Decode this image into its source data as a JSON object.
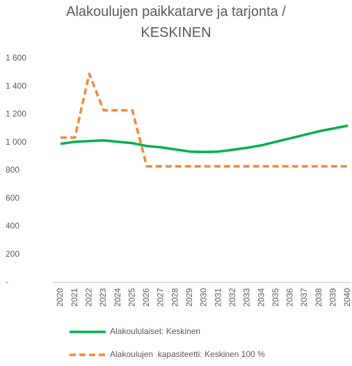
{
  "chart_data": {
    "type": "line",
    "title": "Alakoulujen paikkatarve ja tarjonta / KESKINEN",
    "categories": [
      "2020",
      "2021",
      "2022",
      "2023",
      "2024",
      "2025",
      "2026",
      "2027",
      "2028",
      "2029",
      "2030",
      "2031",
      "2032",
      "2033",
      "2034",
      "2035",
      "2036",
      "2037",
      "2038",
      "2039",
      "2040"
    ],
    "series": [
      {
        "name": "Alakoululaiset: Keskinen",
        "color": "#00b050",
        "dash": false,
        "values": [
          990,
          1005,
          1010,
          1015,
          1005,
          995,
          975,
          965,
          950,
          935,
          932,
          935,
          948,
          962,
          980,
          1005,
          1030,
          1055,
          1080,
          1100,
          1120
        ]
      },
      {
        "name": "Alakoulujen  kapasiteetti: Keskinen 100 %",
        "color": "#f4873b",
        "dash": true,
        "values": [
          1035,
          1035,
          1490,
          1230,
          1230,
          1230,
          830,
          830,
          830,
          830,
          830,
          830,
          830,
          830,
          830,
          830,
          830,
          830,
          830,
          830,
          830
        ]
      }
    ],
    "ylim": [
      0,
      1600
    ],
    "yticks": [
      {
        "value": 0,
        "label": "-"
      },
      200,
      400,
      600,
      800,
      {
        "value": 1000,
        "label": "1 000"
      },
      {
        "value": 1200,
        "label": "1 200"
      },
      {
        "value": 1400,
        "label": "1 400"
      },
      {
        "value": 1600,
        "label": "1 600"
      }
    ],
    "grid": false
  }
}
